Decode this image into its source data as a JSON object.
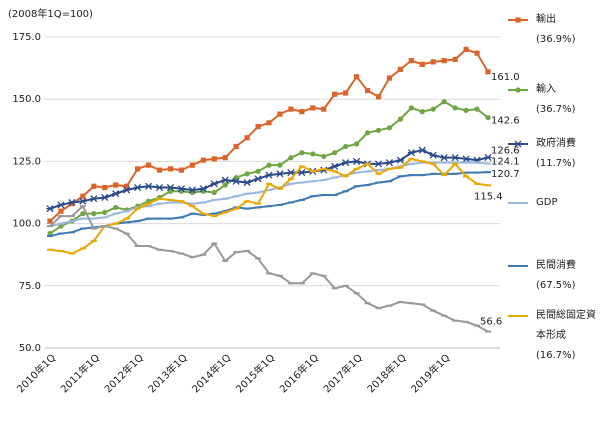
{
  "chart_data": {
    "type": "line",
    "y_unit_label": "(2008年1Q=100)",
    "categories": [
      "2010年1Q",
      null,
      null,
      null,
      "2011年1Q",
      null,
      null,
      null,
      "2012年1Q",
      null,
      null,
      null,
      "2013年1Q",
      null,
      null,
      null,
      "2014年1Q",
      null,
      null,
      null,
      "2015年1Q",
      null,
      null,
      null,
      "2016年1Q",
      null,
      null,
      null,
      "2017年1Q",
      null,
      null,
      null,
      "2018年1Q",
      null,
      null,
      null,
      "2019年1Q",
      null,
      null,
      null,
      null
    ],
    "ylim": [
      50,
      175
    ],
    "yticks": [
      {
        "value": 50,
        "label": "50.0"
      },
      {
        "value": 75,
        "label": "75.0"
      },
      {
        "value": 100,
        "label": "100.0"
      },
      {
        "value": 125,
        "label": "125.0"
      },
      {
        "value": 150,
        "label": "150.0"
      },
      {
        "value": 175,
        "label": "175.0"
      }
    ],
    "grid": true,
    "series": [
      {
        "name": "輸出",
        "share": "(36.9%)",
        "color": "#d9652b",
        "marker": "square",
        "values": [
          101,
          105,
          108,
          111,
          115,
          114.5,
          115.5,
          115,
          122,
          123.5,
          121.5,
          122,
          121.5,
          123.5,
          125.5,
          126,
          126.5,
          131,
          134.5,
          139,
          140.5,
          144,
          146,
          145,
          146.5,
          146,
          152,
          152.5,
          159,
          153.5,
          151,
          158.5,
          162,
          165.5,
          164,
          165,
          165.5,
          166,
          170,
          168.5,
          161.0
        ],
        "value_labels": [
          null,
          null,
          null,
          null,
          null,
          null,
          null,
          null,
          null,
          null,
          null,
          null,
          null,
          null,
          null,
          null,
          null,
          null,
          null,
          null,
          null,
          null,
          null,
          null,
          null,
          null,
          null,
          null,
          null,
          null,
          null,
          null,
          null,
          null,
          null,
          null,
          null,
          null,
          null,
          null,
          "161.0"
        ]
      },
      {
        "name": "輸入",
        "share": "(36.7%)",
        "color": "#6fa644",
        "marker": "circle",
        "values": [
          96,
          99,
          101,
          104,
          104,
          104.5,
          106.5,
          105.5,
          107,
          109,
          110.5,
          113,
          113,
          112.5,
          113,
          112.5,
          115.5,
          118.5,
          120,
          121,
          123.5,
          123.5,
          126.5,
          128.5,
          128,
          127,
          128.5,
          131,
          132,
          136.5,
          137.5,
          138.5,
          142,
          146.5,
          145,
          146,
          149,
          146.5,
          145.5,
          146,
          142.6
        ],
        "value_labels": [
          null,
          null,
          null,
          null,
          null,
          null,
          null,
          null,
          null,
          null,
          null,
          null,
          null,
          null,
          null,
          null,
          null,
          null,
          null,
          null,
          null,
          null,
          null,
          null,
          null,
          null,
          null,
          null,
          null,
          null,
          null,
          null,
          null,
          null,
          null,
          null,
          null,
          null,
          null,
          null,
          "142.6"
        ]
      },
      {
        "name": "政府消費",
        "share": "(11.7%)",
        "color": "#2b4a8a",
        "marker": "cross",
        "values": [
          106,
          107.5,
          108.5,
          109,
          110,
          110.5,
          112,
          113.5,
          114.5,
          115,
          114.5,
          114.5,
          114,
          113.5,
          114,
          116,
          117.5,
          117,
          116.5,
          118,
          119.5,
          120,
          120.5,
          120.5,
          121,
          121.5,
          123,
          124.5,
          125,
          124,
          124,
          124.5,
          125.5,
          128.5,
          129.5,
          127.5,
          126.5,
          126.5,
          126,
          125.5,
          126.6
        ],
        "value_labels": [
          null,
          null,
          null,
          null,
          null,
          null,
          null,
          null,
          null,
          null,
          null,
          null,
          null,
          null,
          null,
          null,
          null,
          null,
          null,
          null,
          null,
          null,
          null,
          null,
          null,
          null,
          null,
          null,
          null,
          null,
          null,
          null,
          null,
          null,
          null,
          null,
          null,
          null,
          null,
          null,
          "126.6"
        ]
      },
      {
        "name": "GDP",
        "color": "#9db8e0",
        "marker": "dash",
        "values": [
          99,
          100,
          101,
          102,
          102,
          102.5,
          104,
          105,
          106.5,
          107,
          108,
          108.5,
          108.5,
          108,
          108.5,
          109.5,
          110,
          111,
          112,
          112.5,
          113.5,
          114.5,
          116,
          116.5,
          117,
          117.5,
          118.5,
          119.5,
          120.5,
          121,
          121.5,
          122,
          123,
          124,
          124.5,
          124.5,
          124.5,
          124.5,
          124.5,
          124.5,
          124.1
        ],
        "value_labels": [
          null,
          null,
          null,
          null,
          null,
          null,
          null,
          null,
          null,
          null,
          null,
          null,
          null,
          null,
          null,
          null,
          null,
          null,
          null,
          null,
          null,
          null,
          null,
          null,
          null,
          null,
          null,
          null,
          null,
          null,
          null,
          null,
          null,
          null,
          null,
          null,
          null,
          null,
          null,
          null,
          "124.1"
        ]
      },
      {
        "name": "民間消費",
        "share": "(67.5%)",
        "color": "#3e7bb0",
        "marker": "dash",
        "values": [
          95,
          96,
          96.5,
          98,
          98.5,
          99,
          100,
          100.5,
          101,
          102,
          102,
          102,
          102.5,
          104,
          103.5,
          104,
          105,
          106.5,
          106,
          106.5,
          107,
          107.5,
          108.5,
          109.5,
          111,
          111.5,
          111.5,
          113,
          115,
          115.5,
          116.5,
          117,
          119,
          119.5,
          119.5,
          120,
          120,
          120,
          120.5,
          120.5,
          120.7
        ],
        "value_labels": [
          null,
          null,
          null,
          null,
          null,
          null,
          null,
          null,
          null,
          null,
          null,
          null,
          null,
          null,
          null,
          null,
          null,
          null,
          null,
          null,
          null,
          null,
          null,
          null,
          null,
          null,
          null,
          null,
          null,
          null,
          null,
          null,
          null,
          null,
          null,
          null,
          null,
          null,
          null,
          null,
          "120.7"
        ]
      },
      {
        "name": "民間総固定資本形成",
        "share": "(16.7%)",
        "color": "#e8a800",
        "marker": "dash",
        "values": [
          89.5,
          89,
          88,
          90,
          93,
          99,
          100,
          102,
          106,
          108,
          110,
          109.5,
          109,
          107,
          104,
          103,
          104.5,
          106,
          109,
          108,
          116,
          114,
          118,
          123,
          121,
          122,
          121,
          119,
          122,
          124,
          120,
          122,
          122.5,
          126,
          125,
          124,
          119.5,
          124,
          119,
          116,
          115.4
        ],
        "value_labels": [
          null,
          null,
          null,
          null,
          null,
          null,
          null,
          null,
          null,
          null,
          null,
          null,
          null,
          null,
          null,
          null,
          null,
          null,
          null,
          null,
          null,
          null,
          null,
          null,
          null,
          null,
          null,
          null,
          null,
          null,
          null,
          null,
          null,
          null,
          null,
          null,
          null,
          null,
          null,
          null,
          "115.4"
        ]
      },
      {
        "color": "#999999",
        "marker": "dash",
        "values": [
          99,
          103,
          103,
          107,
          98,
          99,
          98,
          96,
          91,
          91,
          89.5,
          89,
          88,
          86.5,
          87.5,
          92,
          85,
          88.5,
          89,
          86,
          80,
          79,
          76,
          76,
          80,
          79,
          74,
          75,
          72,
          68,
          66,
          67,
          68.5,
          68,
          67.5,
          65,
          63,
          61,
          60.5,
          59,
          56.6
        ],
        "value_labels": [
          null,
          null,
          null,
          null,
          null,
          null,
          null,
          null,
          null,
          null,
          null,
          null,
          null,
          null,
          null,
          null,
          null,
          null,
          null,
          null,
          null,
          null,
          null,
          null,
          null,
          null,
          null,
          null,
          null,
          null,
          null,
          null,
          null,
          null,
          null,
          null,
          null,
          null,
          null,
          null,
          "56.6"
        ]
      }
    ]
  }
}
